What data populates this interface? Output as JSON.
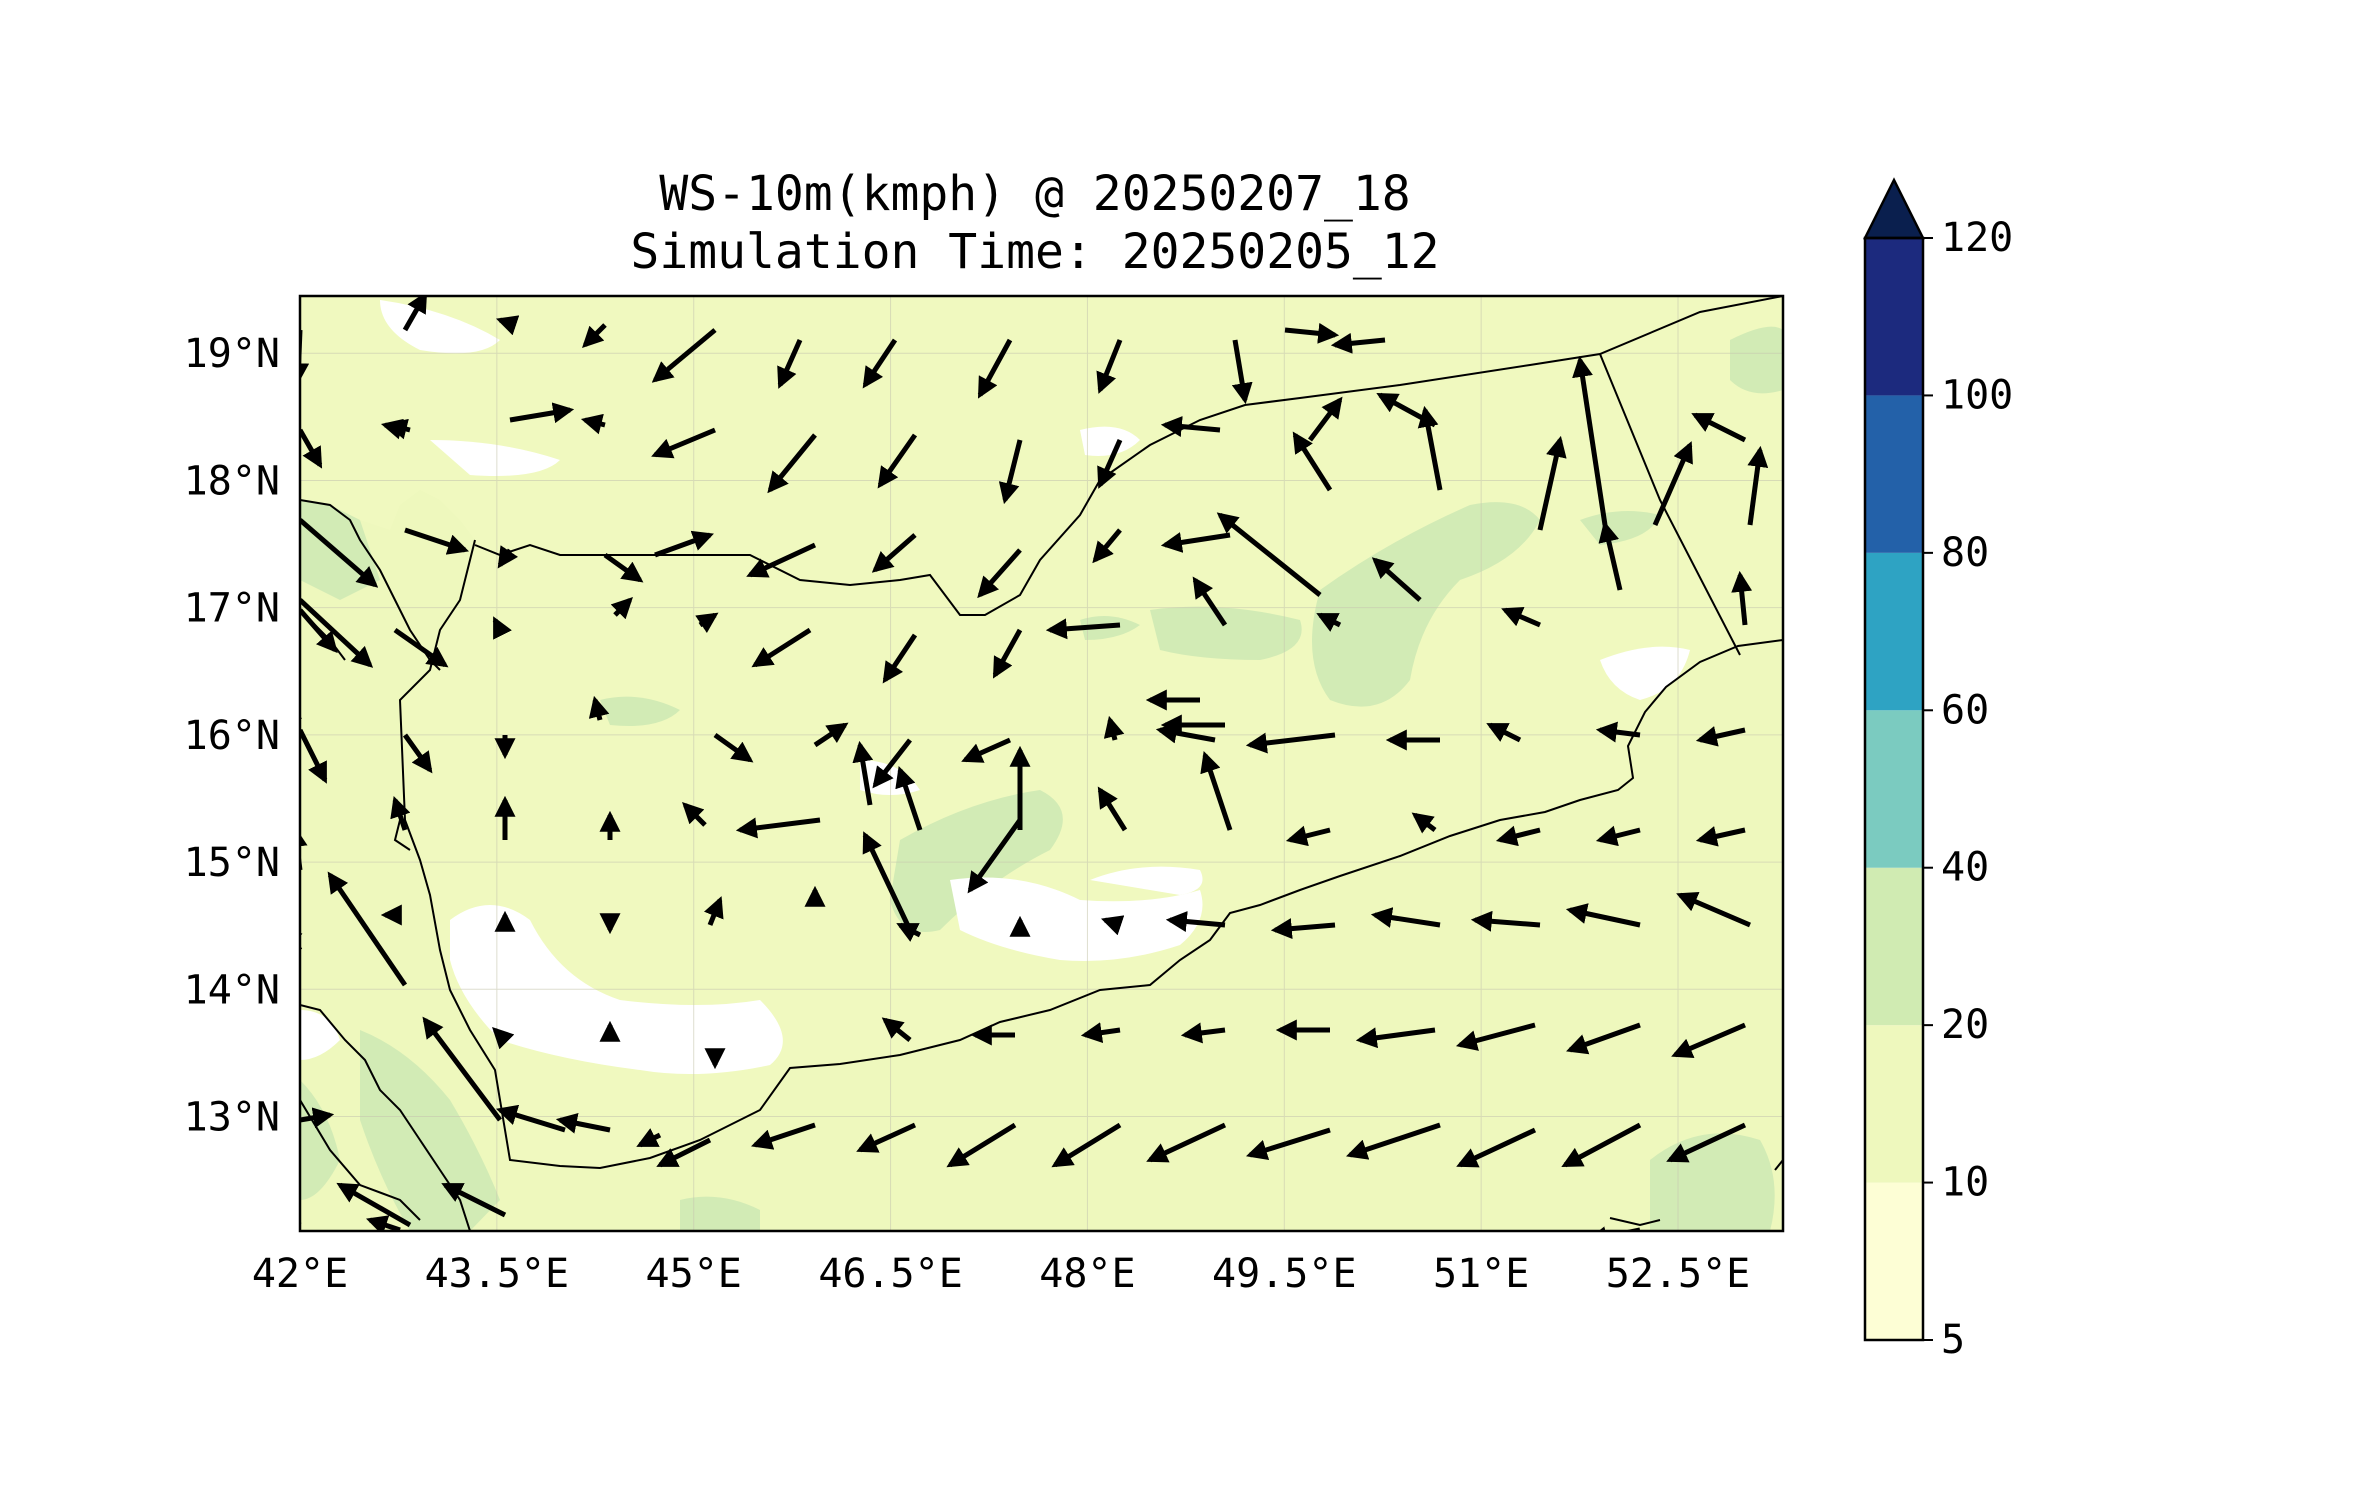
{
  "title": {
    "line1": "WS-10m(kmph) @ 20250207_18",
    "line2": "Simulation Time: 20250205_12"
  },
  "map": {
    "lon_range": [
      42.0,
      53.3
    ],
    "lat_range": [
      12.1,
      19.45
    ],
    "lon_ticks": [
      "42°E",
      "43.5°E",
      "45°E",
      "46.5°E",
      "48°E",
      "49.5°E",
      "51°E",
      "52.5°E"
    ],
    "lat_ticks": [
      "19°N",
      "18°N",
      "17°N",
      "16°N",
      "15°N",
      "14°N",
      "13°N"
    ],
    "grid": true,
    "land_fill": "#f0f9bf",
    "sea_fill": "#eef8bd",
    "fill_patches": "#d2ebb5",
    "light_patches": "#ffffff",
    "boundary_color": "#000000"
  },
  "colorbar": {
    "levels": [
      "5",
      "10",
      "20",
      "40",
      "60",
      "80",
      "100",
      "120"
    ],
    "colors": [
      "#fdfed5",
      "#eef8bd",
      "#d0ebb2",
      "#7bcbc0",
      "#2ea3c3",
      "#2361a9",
      "#1c2a7e",
      "#0a1f4e"
    ],
    "extend": "max"
  }
}
